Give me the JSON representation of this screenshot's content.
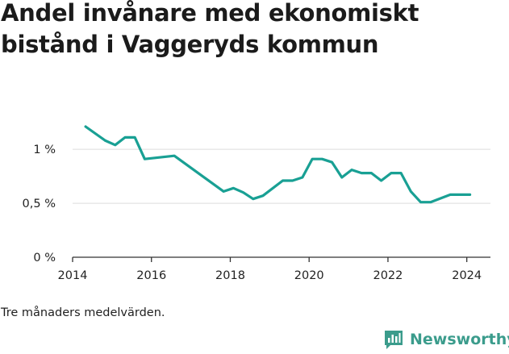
{
  "title": "Andel invånare med ekonomiskt bistånd i Vaggeryds kommun",
  "note": "Tre månaders medelvärden.",
  "brand": "Newsworthy",
  "colors": {
    "line": "#19a094",
    "brand": "#3b9c8c",
    "grid": "#dddddd",
    "axis": "#333333"
  },
  "chart_data": {
    "type": "line",
    "title": "Andel invånare med ekonomiskt bistånd i Vaggeryds kommun",
    "xlabel": "",
    "ylabel": "",
    "xlim": [
      2014,
      2024.6
    ],
    "ylim": [
      0,
      1.3
    ],
    "xticks": [
      2014,
      2016,
      2018,
      2020,
      2022,
      2024
    ],
    "xtick_labels": [
      "2014",
      "2016",
      "2018",
      "2020",
      "2022",
      "2024"
    ],
    "yticks": [
      0,
      0.5,
      1
    ],
    "ytick_labels": [
      "0 %",
      "0,5 %",
      "1 %"
    ],
    "grid": "horizontal",
    "x": [
      2014.33,
      2014.83,
      2015.08,
      2015.33,
      2015.58,
      2015.83,
      2016.58,
      2017.83,
      2018.08,
      2018.33,
      2018.58,
      2018.83,
      2019.33,
      2019.58,
      2019.83,
      2020.08,
      2020.33,
      2020.58,
      2020.83,
      2021.08,
      2021.33,
      2021.58,
      2021.83,
      2022.08,
      2022.33,
      2022.58,
      2022.83,
      2023.08,
      2023.58,
      2024.08
    ],
    "values": [
      1.21,
      1.08,
      1.04,
      1.11,
      1.11,
      0.91,
      0.94,
      0.61,
      0.64,
      0.6,
      0.54,
      0.57,
      0.71,
      0.71,
      0.74,
      0.91,
      0.91,
      0.88,
      0.74,
      0.81,
      0.78,
      0.78,
      0.71,
      0.78,
      0.78,
      0.61,
      0.51,
      0.51,
      0.58,
      0.58
    ]
  }
}
